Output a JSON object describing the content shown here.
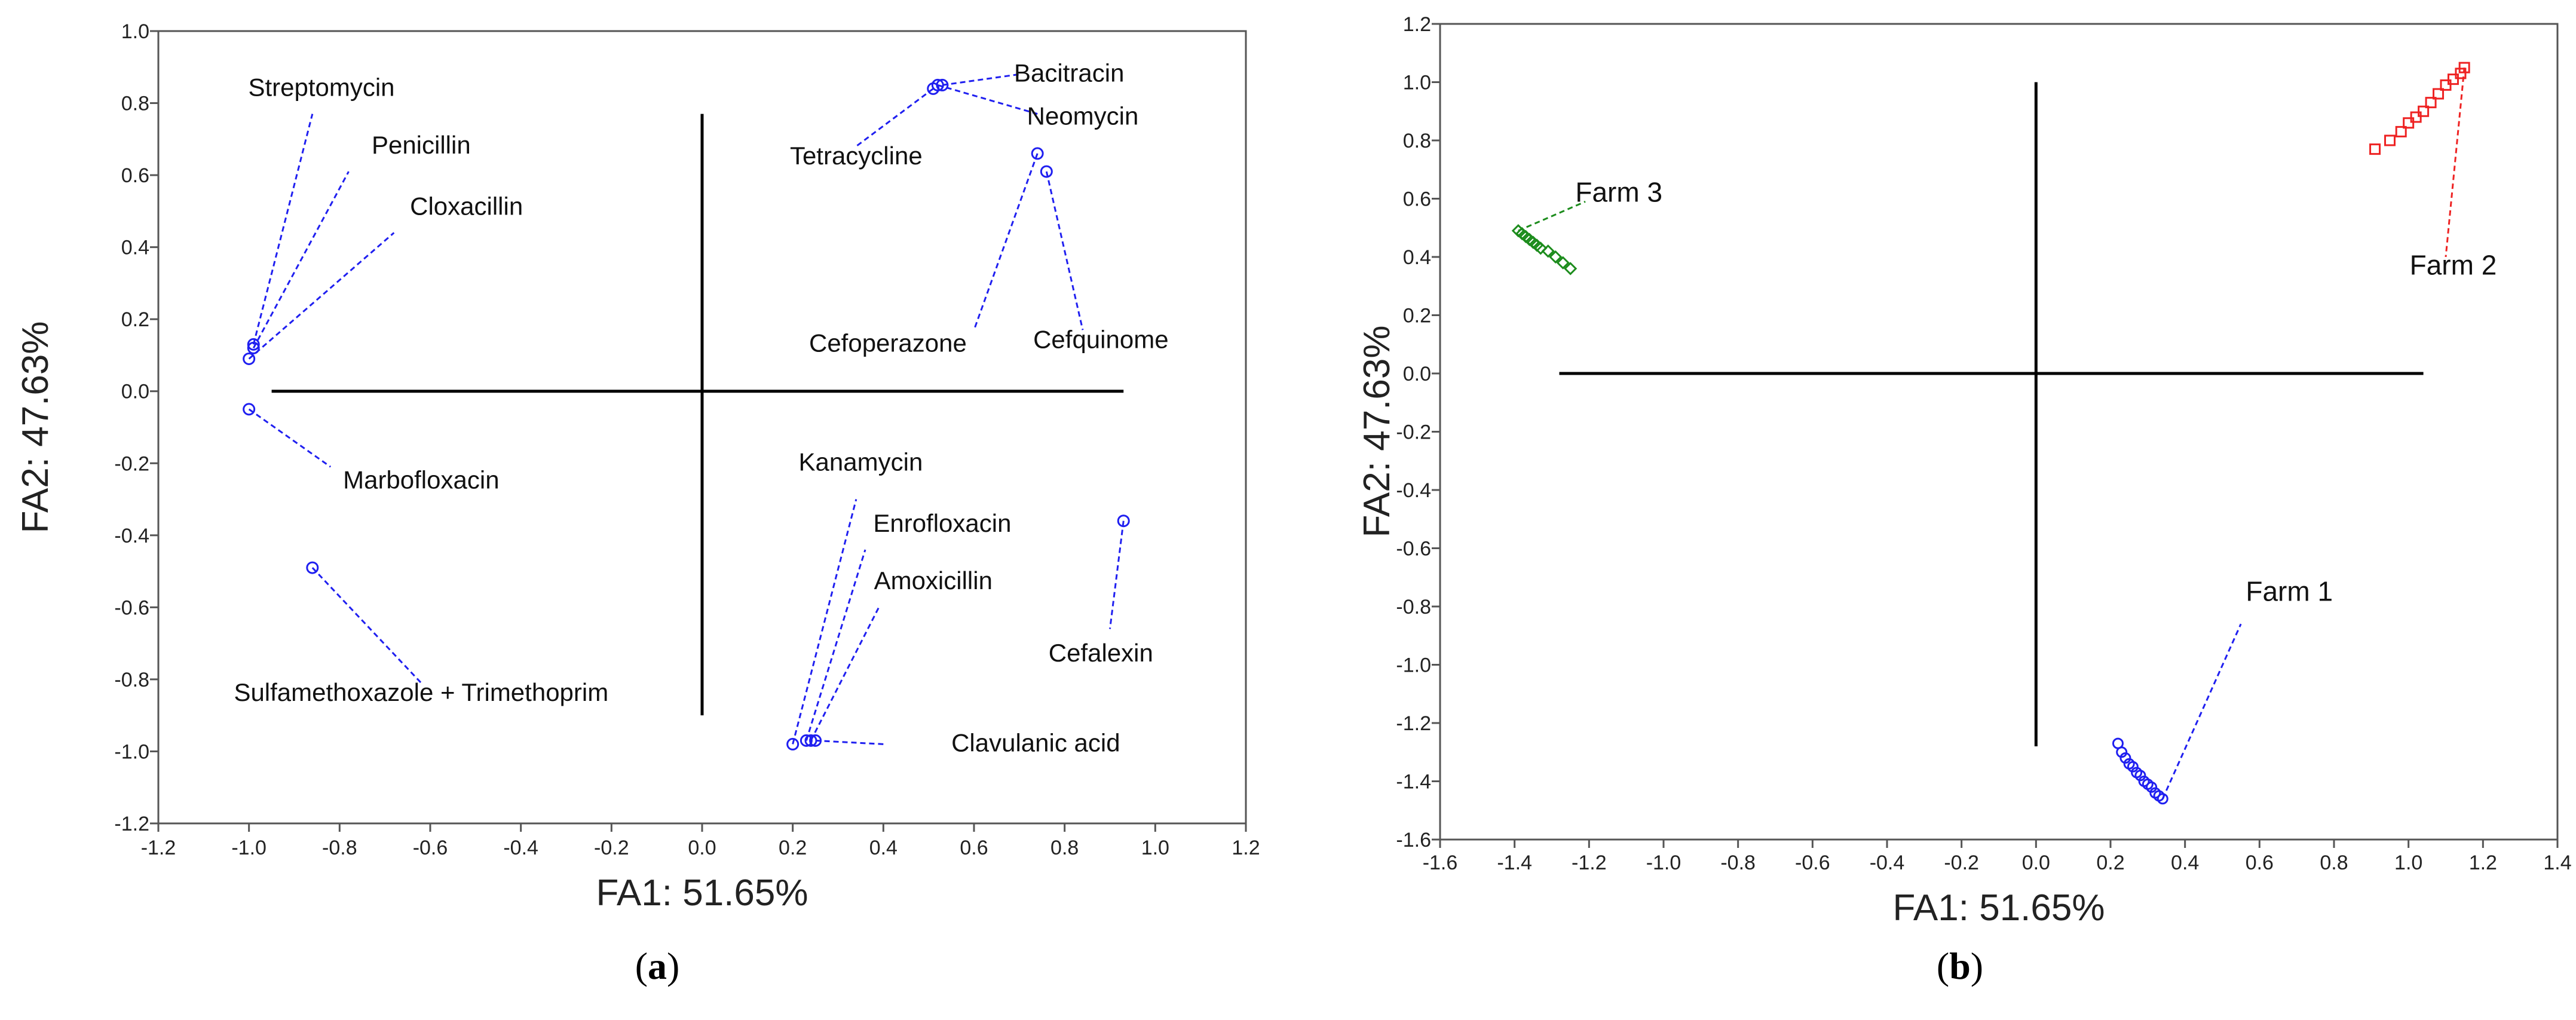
{
  "colors": {
    "blue": "#1f1ff0",
    "red": "#ee2222",
    "green": "#1c8c1c",
    "axis": "#000000",
    "frame": "#555555"
  },
  "chart_data": [
    {
      "panel": "a",
      "type": "scatter",
      "xlabel": "FA1: 51.65%",
      "ylabel": "FA2: 47.63%",
      "xlim": [
        -1.2,
        1.2
      ],
      "ylim": [
        -1.2,
        1.0
      ],
      "xticks": [
        "-1.2",
        "-1.0",
        "-0.8",
        "-0.6",
        "-0.4",
        "-0.2",
        "0.0",
        "0.2",
        "0.4",
        "0.6",
        "0.8",
        "1.0",
        "1.2"
      ],
      "yticks": [
        "-1.2",
        "-1.0",
        "-0.8",
        "-0.6",
        "-0.4",
        "-0.2",
        "0.0",
        "0.2",
        "0.4",
        "0.6",
        "0.8",
        "1.0"
      ],
      "points": [
        {
          "label": "Streptomycin",
          "x": -0.99,
          "y": 0.13
        },
        {
          "label": "Penicillin",
          "x": -0.99,
          "y": 0.12
        },
        {
          "label": "Cloxacillin",
          "x": -1.0,
          "y": 0.09
        },
        {
          "label": "Marbofloxacin",
          "x": -1.0,
          "y": -0.05
        },
        {
          "label": "Sulfamethoxazole + Trimethoprim",
          "x": -0.86,
          "y": -0.49
        },
        {
          "label": "Bacitracin",
          "x": 0.53,
          "y": 0.85
        },
        {
          "label": "Neomycin",
          "x": 0.52,
          "y": 0.85
        },
        {
          "label": "Tetracycline",
          "x": 0.51,
          "y": 0.84
        },
        {
          "label": "Cefoperazone",
          "x": 0.74,
          "y": 0.66
        },
        {
          "label": "Cefquinome",
          "x": 0.76,
          "y": 0.61
        },
        {
          "label": "Kanamycin",
          "x": 0.2,
          "y": -0.98
        },
        {
          "label": "Enrofloxacin",
          "x": 0.23,
          "y": -0.97
        },
        {
          "label": "Amoxicillin",
          "x": 0.24,
          "y": -0.97
        },
        {
          "label": "Clavulanic acid",
          "x": 0.25,
          "y": -0.97
        },
        {
          "label": "Cefalexin",
          "x": 0.93,
          "y": -0.36
        }
      ],
      "caption": "a"
    },
    {
      "panel": "b",
      "type": "scatter",
      "xlabel": "FA1: 51.65%",
      "ylabel": "FA2: 47.63%",
      "xlim": [
        -1.6,
        1.4
      ],
      "ylim": [
        -1.6,
        1.2
      ],
      "xticks": [
        "-1.6",
        "-1.4",
        "-1.2",
        "-1.0",
        "-0.8",
        "-0.6",
        "-0.4",
        "-0.2",
        "0.0",
        "0.2",
        "0.4",
        "0.6",
        "0.8",
        "1.0",
        "1.2",
        "1.4"
      ],
      "yticks": [
        "-1.6",
        "-1.4",
        "-1.2",
        "-1.0",
        "-0.8",
        "-0.6",
        "-0.4",
        "-0.2",
        "0.0",
        "0.2",
        "0.4",
        "0.6",
        "0.8",
        "1.0",
        "1.2"
      ],
      "series": [
        {
          "name": "Farm 1",
          "marker": "circle",
          "color": "#1f1ff0",
          "x": [
            0.22,
            0.23,
            0.24,
            0.25,
            0.26,
            0.27,
            0.28,
            0.29,
            0.3,
            0.31,
            0.32,
            0.33,
            0.34
          ],
          "y": [
            -1.27,
            -1.3,
            -1.32,
            -1.34,
            -1.35,
            -1.37,
            -1.38,
            -1.4,
            -1.41,
            -1.42,
            -1.44,
            -1.45,
            -1.46
          ]
        },
        {
          "name": "Farm 2",
          "marker": "square",
          "color": "#ee2222",
          "x": [
            0.91,
            0.95,
            0.98,
            1.0,
            1.02,
            1.04,
            1.06,
            1.08,
            1.1,
            1.12,
            1.14,
            1.15
          ],
          "y": [
            0.77,
            0.8,
            0.83,
            0.86,
            0.88,
            0.9,
            0.93,
            0.96,
            0.99,
            1.01,
            1.03,
            1.05
          ]
        },
        {
          "name": "Farm 3",
          "marker": "diamond",
          "color": "#1c8c1c",
          "x": [
            -1.39,
            -1.38,
            -1.37,
            -1.36,
            -1.35,
            -1.34,
            -1.33,
            -1.31,
            -1.29,
            -1.27,
            -1.25
          ],
          "y": [
            0.49,
            0.48,
            0.47,
            0.46,
            0.45,
            0.44,
            0.43,
            0.42,
            0.4,
            0.38,
            0.36
          ]
        }
      ],
      "caption": "b"
    }
  ]
}
